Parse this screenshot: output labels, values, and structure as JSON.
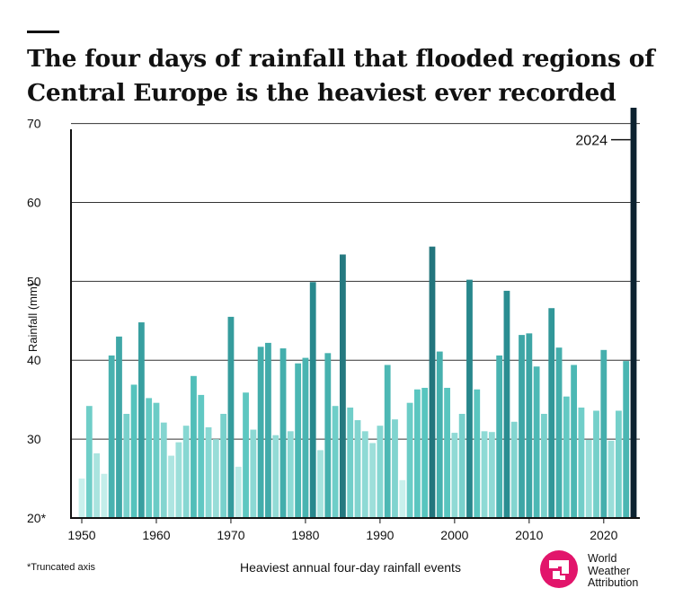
{
  "title": "The four days of rainfall that flooded regions of Central Europe is the heaviest ever recorded",
  "footnote": "*Truncated axis",
  "logo": {
    "lines": [
      "World",
      "Weather",
      "Attribution"
    ],
    "color": "#e2156b"
  },
  "colors": {
    "axis": "#111111",
    "grid": "#333333"
  },
  "chart_data": {
    "type": "bar",
    "title": "The four days of rainfall that flooded regions of Central Europe is the heaviest ever recorded",
    "xlabel": "Heaviest annual four-day rainfall events",
    "ylabel": "Rainfall (mm)",
    "ylim": [
      20,
      72
    ],
    "yticks": [
      20,
      30,
      40,
      50,
      60,
      70
    ],
    "ytick_labels": [
      "20*",
      "30",
      "40",
      "50",
      "60",
      "70"
    ],
    "xticks": [
      1950,
      1960,
      1970,
      1980,
      1990,
      2000,
      2010,
      2020
    ],
    "grid": true,
    "annotation": {
      "label": "2024",
      "year": 2024
    },
    "color_scale": {
      "low": 25,
      "high": 72,
      "stops": [
        "#c9f0ec",
        "#56c4be",
        "#2a8e92",
        "#1d5c68",
        "#0c2230"
      ]
    },
    "years": [
      1950,
      1951,
      1952,
      1953,
      1954,
      1955,
      1956,
      1957,
      1958,
      1959,
      1960,
      1961,
      1962,
      1963,
      1964,
      1965,
      1966,
      1967,
      1968,
      1969,
      1970,
      1971,
      1972,
      1973,
      1974,
      1975,
      1976,
      1977,
      1978,
      1979,
      1980,
      1981,
      1982,
      1983,
      1984,
      1985,
      1986,
      1987,
      1988,
      1989,
      1990,
      1991,
      1992,
      1993,
      1994,
      1995,
      1996,
      1997,
      1998,
      1999,
      2000,
      2001,
      2002,
      2003,
      2004,
      2005,
      2006,
      2007,
      2008,
      2009,
      2010,
      2011,
      2012,
      2013,
      2014,
      2015,
      2016,
      2017,
      2018,
      2019,
      2020,
      2021,
      2022,
      2023,
      2024
    ],
    "values": [
      25.0,
      34.2,
      28.2,
      25.6,
      40.6,
      43.0,
      33.2,
      36.9,
      44.8,
      35.2,
      34.6,
      32.1,
      27.9,
      29.6,
      31.7,
      38.0,
      35.6,
      31.5,
      30.0,
      33.2,
      45.5,
      26.5,
      35.9,
      31.2,
      41.7,
      42.2,
      30.5,
      41.5,
      31.0,
      39.6,
      40.3,
      49.9,
      28.6,
      40.9,
      34.2,
      53.4,
      34.0,
      32.4,
      31.0,
      29.5,
      31.7,
      39.4,
      32.5,
      24.8,
      34.6,
      36.3,
      36.5,
      54.4,
      41.1,
      36.5,
      30.8,
      33.2,
      50.2,
      36.3,
      31.0,
      30.9,
      40.6,
      48.8,
      32.2,
      43.2,
      43.4,
      39.2,
      33.2,
      46.6,
      41.6,
      35.4,
      39.4,
      34.0,
      29.9,
      33.6,
      41.3,
      29.8,
      33.6,
      39.9,
      72.0
    ]
  }
}
